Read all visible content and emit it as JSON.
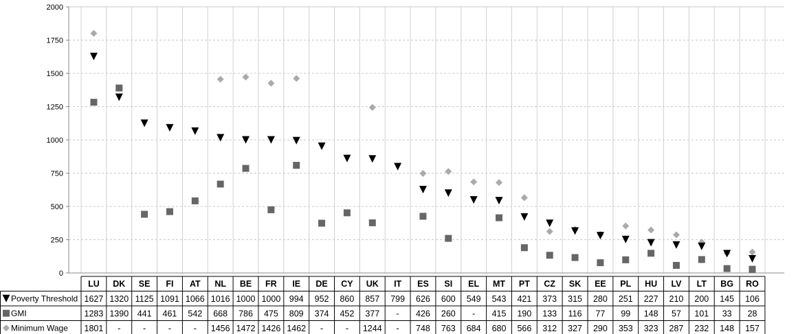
{
  "chart_data": {
    "type": "scatter",
    "ylim": [
      0,
      2000
    ],
    "yticks": [
      0,
      250,
      500,
      750,
      1000,
      1250,
      1500,
      1750,
      2000
    ],
    "grid": true,
    "legend": "table-left",
    "categories": [
      "LU",
      "DK",
      "SE",
      "FI",
      "AT",
      "NL",
      "BE",
      "FR",
      "IE",
      "DE",
      "CY",
      "UK",
      "IT",
      "ES",
      "SI",
      "EL",
      "MT",
      "PT",
      "CZ",
      "SK",
      "EE",
      "PL",
      "HU",
      "LV",
      "LT",
      "BG",
      "RO"
    ],
    "series": [
      {
        "name": "Poverty Threshold",
        "marker": "triangle-down",
        "color": "#000000",
        "values": [
          1627,
          1320,
          1125,
          1091,
          1066,
          1016,
          1000,
          1000,
          994,
          952,
          860,
          857,
          799,
          626,
          600,
          549,
          543,
          421,
          373,
          315,
          280,
          251,
          227,
          210,
          200,
          145,
          106
        ],
        "labels": [
          "1627",
          "1320",
          "1125",
          "1091",
          "1066",
          "1016",
          "1000",
          "1000",
          "994",
          "952",
          "860",
          "857",
          "799",
          "626",
          "600",
          "549",
          "543",
          "421",
          "373",
          "315",
          "280",
          "251",
          "227",
          "210",
          "200",
          "145",
          "106"
        ]
      },
      {
        "name": "GMI",
        "marker": "square",
        "color": "#666666",
        "values": [
          1283,
          1390,
          441,
          461,
          542,
          668,
          786,
          475,
          809,
          374,
          452,
          377,
          null,
          426,
          260,
          null,
          415,
          190,
          133,
          116,
          77,
          99,
          148,
          57,
          101,
          33,
          28
        ],
        "labels": [
          "1283",
          "1390",
          "441",
          "461",
          "542",
          "668",
          "786",
          "475",
          "809",
          "374",
          "452",
          "377",
          "-",
          "426",
          "260",
          "-",
          "415",
          "190",
          "133",
          "116",
          "77",
          "99",
          "148",
          "57",
          "101",
          "33",
          "28"
        ]
      },
      {
        "name": "Minimum Wage",
        "marker": "diamond",
        "color": "#aaaaaa",
        "values": [
          1801,
          null,
          null,
          null,
          null,
          1456,
          1472,
          1426,
          1462,
          null,
          null,
          1244,
          null,
          748,
          763,
          684,
          680,
          566,
          312,
          327,
          290,
          353,
          323,
          287,
          232,
          148,
          157
        ],
        "labels": [
          "1801",
          "-",
          "-",
          "-",
          "-",
          "1456",
          "1472",
          "1426",
          "1462",
          "-",
          "-",
          "1244",
          "-",
          "748",
          "763",
          "684",
          "680",
          "566",
          "312",
          "327",
          "290",
          "353",
          "323",
          "287",
          "232",
          "148",
          "157"
        ]
      }
    ]
  }
}
